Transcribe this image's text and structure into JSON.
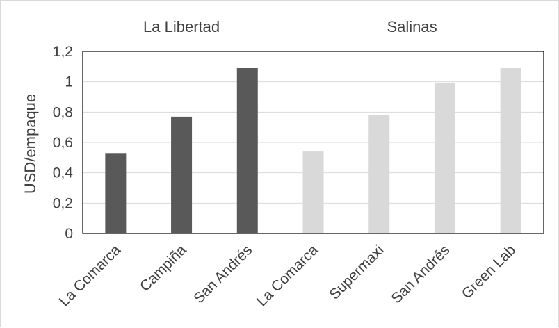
{
  "chart_data": {
    "type": "bar",
    "ylabel": "USD/empaque",
    "ylim": [
      0,
      1.2
    ],
    "yticks": [
      "0",
      "0,2",
      "0,4",
      "0,6",
      "0,8",
      "1",
      "1,2"
    ],
    "grid": true,
    "groups": [
      {
        "label": "La Libertad",
        "color": "#595959",
        "categories": [
          "La Comarca",
          "Campiña",
          "San Andrés"
        ],
        "values": [
          0.53,
          0.77,
          1.09
        ]
      },
      {
        "label": "Salinas",
        "color": "#d9d9d9",
        "categories": [
          "La Comarca",
          "Supermaxi",
          "San Andrés",
          "Green Lab"
        ],
        "values": [
          0.54,
          0.78,
          0.99,
          1.09
        ]
      }
    ]
  }
}
